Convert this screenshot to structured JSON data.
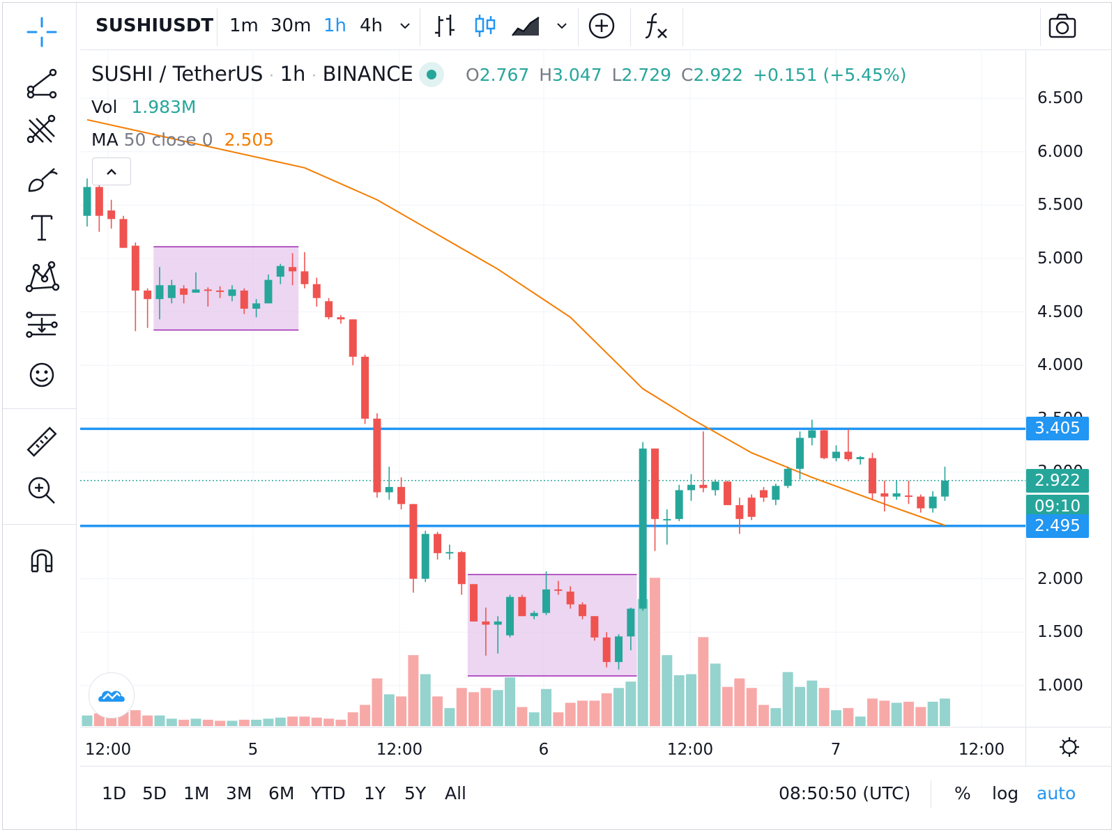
{
  "left_toolbar": {
    "tools": [
      "crosshair-icon",
      "trend-line-icon",
      "fib-retracement-icon",
      "brush-icon",
      "text-icon",
      "pattern-icon",
      "prediction-icon",
      "emoji-icon",
      "ruler-icon",
      "zoom-in-icon",
      "magnet-icon"
    ]
  },
  "topbar": {
    "symbol": "SUSHIUSDT",
    "intervals": [
      "1m",
      "30m",
      "1h",
      "4h"
    ],
    "active_interval": "1h",
    "icons": [
      "interval-dropdown-icon",
      "bar-chart-icon",
      "candle-chart-icon",
      "area-chart-icon",
      "chart-type-dropdown-icon",
      "compare-add-icon",
      "indicators-icon",
      "camera-icon"
    ]
  },
  "legend": {
    "symbol_name": "SUSHI / TetherUS",
    "sep1": "·",
    "interval": "1h",
    "sep2": "·",
    "exchange": "BINANCE",
    "o_label": "O",
    "o_val": "2.767",
    "h_label": "H",
    "h_val": "3.047",
    "l_label": "L",
    "l_val": "2.729",
    "c_label": "C",
    "c_val": "2.922",
    "change": "+0.151 (+5.45%)",
    "vol_label": "Vol",
    "vol_val": "1.983M",
    "ma_label": "MA",
    "ma_params": "50 close 0",
    "ma_val": "2.505",
    "collapse_icon": "chevron-up-icon"
  },
  "colors": {
    "up": "#26a69a",
    "down": "#ef5350",
    "up_vol": "#94d3ce",
    "down_vol": "#f7a9a8",
    "ma": "#f57c00",
    "hline": "#2196f3",
    "rect_fill": "#e6c8ee",
    "rect_border": "#9c27b0",
    "accent": "#2962ff"
  },
  "price_axis": {
    "ticks": [
      "6.500",
      "6.000",
      "5.500",
      "5.000",
      "4.500",
      "4.000",
      "3.500",
      "3.000",
      "2.000",
      "1.500",
      "1.000"
    ],
    "labels": {
      "hline_top": "3.405",
      "last_price": "2.922",
      "countdown": "09:10",
      "hline_bottom": "2.495"
    }
  },
  "time_axis": {
    "ticks": [
      "12:00",
      "5",
      "12:00",
      "6",
      "12:00",
      "7",
      "12:00"
    ],
    "settings_icon": "gear-icon"
  },
  "bottombar": {
    "ranges": [
      "1D",
      "5D",
      "1M",
      "3M",
      "6M",
      "YTD",
      "1Y",
      "5Y",
      "All"
    ],
    "clock": "08:50:50 (UTC)",
    "percent": "%",
    "log": "log",
    "auto": "auto"
  },
  "chart_data": {
    "type": "candlestick",
    "interval": "1h",
    "x_ticks": [
      "12:00",
      "5",
      "12:00",
      "6",
      "12:00",
      "7",
      "12:00"
    ],
    "ylim": [
      0.6,
      6.8
    ],
    "moving_average": {
      "name": "MA 50 close 0",
      "last": 2.505
    },
    "horizontal_lines": [
      3.405,
      2.495
    ],
    "candles": [
      {
        "o": 5.4,
        "h": 5.75,
        "l": 5.3,
        "c": 5.67,
        "v": 1.0
      },
      {
        "o": 5.67,
        "h": 5.72,
        "l": 5.25,
        "c": 5.4,
        "v": 1.2
      },
      {
        "o": 5.45,
        "h": 5.55,
        "l": 5.28,
        "c": 5.37,
        "v": 1.1
      },
      {
        "o": 5.37,
        "h": 5.4,
        "l": 5.1,
        "c": 5.1,
        "v": 1.3
      },
      {
        "o": 5.12,
        "h": 5.15,
        "l": 4.32,
        "c": 4.7,
        "v": 1.5
      },
      {
        "o": 4.7,
        "h": 4.72,
        "l": 4.35,
        "c": 4.62,
        "v": 1.0
      },
      {
        "o": 4.62,
        "h": 4.92,
        "l": 4.43,
        "c": 4.75,
        "v": 1.0
      },
      {
        "o": 4.63,
        "h": 4.8,
        "l": 4.58,
        "c": 4.75,
        "v": 0.7
      },
      {
        "o": 4.72,
        "h": 4.75,
        "l": 4.58,
        "c": 4.66,
        "v": 0.6
      },
      {
        "o": 4.68,
        "h": 4.87,
        "l": 4.68,
        "c": 4.71,
        "v": 0.7
      },
      {
        "o": 4.71,
        "h": 4.73,
        "l": 4.55,
        "c": 4.7,
        "v": 0.6
      },
      {
        "o": 4.7,
        "h": 4.74,
        "l": 4.63,
        "c": 4.69,
        "v": 0.5
      },
      {
        "o": 4.65,
        "h": 4.75,
        "l": 4.6,
        "c": 4.71,
        "v": 0.5
      },
      {
        "o": 4.7,
        "h": 4.72,
        "l": 4.48,
        "c": 4.53,
        "v": 0.6
      },
      {
        "o": 4.53,
        "h": 4.62,
        "l": 4.45,
        "c": 4.58,
        "v": 0.6
      },
      {
        "o": 4.58,
        "h": 4.85,
        "l": 4.58,
        "c": 4.8,
        "v": 0.7
      },
      {
        "o": 4.83,
        "h": 4.95,
        "l": 4.76,
        "c": 4.93,
        "v": 0.8
      },
      {
        "o": 4.92,
        "h": 5.05,
        "l": 4.75,
        "c": 4.88,
        "v": 0.9
      },
      {
        "o": 4.88,
        "h": 5.06,
        "l": 4.72,
        "c": 4.76,
        "v": 0.9
      },
      {
        "o": 4.76,
        "h": 4.82,
        "l": 4.55,
        "c": 4.63,
        "v": 0.8
      },
      {
        "o": 4.6,
        "h": 4.63,
        "l": 4.43,
        "c": 4.45,
        "v": 0.7
      },
      {
        "o": 4.45,
        "h": 4.47,
        "l": 4.39,
        "c": 4.43,
        "v": 0.6
      },
      {
        "o": 4.43,
        "h": 4.43,
        "l": 4.0,
        "c": 4.08,
        "v": 1.3
      },
      {
        "o": 4.08,
        "h": 4.1,
        "l": 3.45,
        "c": 3.5,
        "v": 2.0
      },
      {
        "o": 3.5,
        "h": 3.55,
        "l": 2.76,
        "c": 2.81,
        "v": 4.5
      },
      {
        "o": 2.81,
        "h": 3.05,
        "l": 2.74,
        "c": 2.86,
        "v": 3.0
      },
      {
        "o": 2.86,
        "h": 2.95,
        "l": 2.65,
        "c": 2.7,
        "v": 2.8
      },
      {
        "o": 2.7,
        "h": 2.7,
        "l": 1.87,
        "c": 2.0,
        "v": 6.7
      },
      {
        "o": 2.0,
        "h": 2.45,
        "l": 1.97,
        "c": 2.42,
        "v": 4.9
      },
      {
        "o": 2.42,
        "h": 2.44,
        "l": 2.18,
        "c": 2.24,
        "v": 2.8
      },
      {
        "o": 2.24,
        "h": 2.32,
        "l": 2.18,
        "c": 2.25,
        "v": 1.7
      },
      {
        "o": 2.25,
        "h": 2.26,
        "l": 1.85,
        "c": 1.95,
        "v": 3.6
      },
      {
        "o": 1.95,
        "h": 1.95,
        "l": 1.6,
        "c": 1.6,
        "v": 3.2
      },
      {
        "o": 1.6,
        "h": 1.73,
        "l": 1.28,
        "c": 1.57,
        "v": 3.6
      },
      {
        "o": 1.57,
        "h": 1.65,
        "l": 1.3,
        "c": 1.6,
        "v": 3.4
      },
      {
        "o": 1.47,
        "h": 1.85,
        "l": 1.45,
        "c": 1.83,
        "v": 4.6
      },
      {
        "o": 1.83,
        "h": 1.85,
        "l": 1.65,
        "c": 1.65,
        "v": 1.8
      },
      {
        "o": 1.65,
        "h": 1.7,
        "l": 1.62,
        "c": 1.68,
        "v": 1.3
      },
      {
        "o": 1.68,
        "h": 2.07,
        "l": 1.66,
        "c": 1.9,
        "v": 3.5
      },
      {
        "o": 1.9,
        "h": 1.98,
        "l": 1.85,
        "c": 1.89,
        "v": 1.3
      },
      {
        "o": 1.88,
        "h": 1.93,
        "l": 1.72,
        "c": 1.76,
        "v": 2.2
      },
      {
        "o": 1.76,
        "h": 1.78,
        "l": 1.62,
        "c": 1.65,
        "v": 2.4
      },
      {
        "o": 1.65,
        "h": 1.65,
        "l": 1.42,
        "c": 1.45,
        "v": 2.4
      },
      {
        "o": 1.45,
        "h": 1.5,
        "l": 1.17,
        "c": 1.22,
        "v": 3.1
      },
      {
        "o": 1.22,
        "h": 1.48,
        "l": 1.15,
        "c": 1.46,
        "v": 3.6
      },
      {
        "o": 1.46,
        "h": 1.73,
        "l": 1.33,
        "c": 1.72,
        "v": 4.2
      },
      {
        "o": 1.72,
        "h": 3.28,
        "l": 1.7,
        "c": 3.22,
        "v": 12.0
      },
      {
        "o": 3.22,
        "h": 3.22,
        "l": 2.26,
        "c": 2.56,
        "v": 14.0
      },
      {
        "o": 2.56,
        "h": 2.65,
        "l": 2.32,
        "c": 2.56,
        "v": 6.7
      },
      {
        "o": 2.56,
        "h": 2.88,
        "l": 2.54,
        "c": 2.83,
        "v": 4.8
      },
      {
        "o": 2.83,
        "h": 2.98,
        "l": 2.73,
        "c": 2.88,
        "v": 4.9
      },
      {
        "o": 2.88,
        "h": 3.38,
        "l": 2.81,
        "c": 2.85,
        "v": 8.4
      },
      {
        "o": 2.83,
        "h": 2.93,
        "l": 2.78,
        "c": 2.91,
        "v": 5.9
      },
      {
        "o": 2.91,
        "h": 2.92,
        "l": 2.69,
        "c": 2.69,
        "v": 3.7
      },
      {
        "o": 2.69,
        "h": 2.76,
        "l": 2.42,
        "c": 2.56,
        "v": 4.5
      },
      {
        "o": 2.76,
        "h": 2.79,
        "l": 2.55,
        "c": 2.58,
        "v": 3.6
      },
      {
        "o": 2.83,
        "h": 2.86,
        "l": 2.72,
        "c": 2.76,
        "v": 2.0
      },
      {
        "o": 2.74,
        "h": 2.89,
        "l": 2.69,
        "c": 2.87,
        "v": 1.7
      },
      {
        "o": 2.87,
        "h": 3.05,
        "l": 2.85,
        "c": 3.03,
        "v": 5.1
      },
      {
        "o": 3.03,
        "h": 3.38,
        "l": 2.93,
        "c": 3.32,
        "v": 3.7
      },
      {
        "o": 3.32,
        "h": 3.49,
        "l": 3.25,
        "c": 3.39,
        "v": 4.3
      },
      {
        "o": 3.39,
        "h": 3.4,
        "l": 3.12,
        "c": 3.13,
        "v": 3.6
      },
      {
        "o": 3.13,
        "h": 3.25,
        "l": 3.1,
        "c": 3.19,
        "v": 1.5
      },
      {
        "o": 3.19,
        "h": 3.4,
        "l": 3.1,
        "c": 3.12,
        "v": 1.7
      },
      {
        "o": 3.12,
        "h": 3.15,
        "l": 3.07,
        "c": 3.14,
        "v": 0.9
      },
      {
        "o": 3.13,
        "h": 3.18,
        "l": 2.74,
        "c": 2.8,
        "v": 2.6
      },
      {
        "o": 2.8,
        "h": 2.92,
        "l": 2.63,
        "c": 2.77,
        "v": 2.4
      },
      {
        "o": 2.77,
        "h": 2.92,
        "l": 2.74,
        "c": 2.8,
        "v": 2.2
      },
      {
        "o": 2.78,
        "h": 2.92,
        "l": 2.7,
        "c": 2.77,
        "v": 2.3
      },
      {
        "o": 2.77,
        "h": 2.79,
        "l": 2.62,
        "c": 2.66,
        "v": 1.8
      },
      {
        "o": 2.66,
        "h": 2.82,
        "l": 2.62,
        "c": 2.77,
        "v": 2.3
      },
      {
        "o": 2.77,
        "h": 3.05,
        "l": 2.73,
        "c": 2.92,
        "v": 2.6
      }
    ],
    "ma_points": [
      [
        0,
        6.3
      ],
      [
        8,
        6.1
      ],
      [
        18,
        5.85
      ],
      [
        24,
        5.55
      ],
      [
        34,
        4.9
      ],
      [
        40,
        4.45
      ],
      [
        46,
        3.78
      ],
      [
        50,
        3.5
      ],
      [
        55,
        3.18
      ],
      [
        60,
        2.95
      ],
      [
        66,
        2.7
      ],
      [
        71,
        2.5
      ]
    ],
    "boxes": [
      {
        "from": 5.5,
        "to": 17.5,
        "top": 5.11,
        "bottom": 4.33
      },
      {
        "from": 31.5,
        "to": 45.5,
        "top": 2.04,
        "bottom": 1.09
      }
    ]
  }
}
